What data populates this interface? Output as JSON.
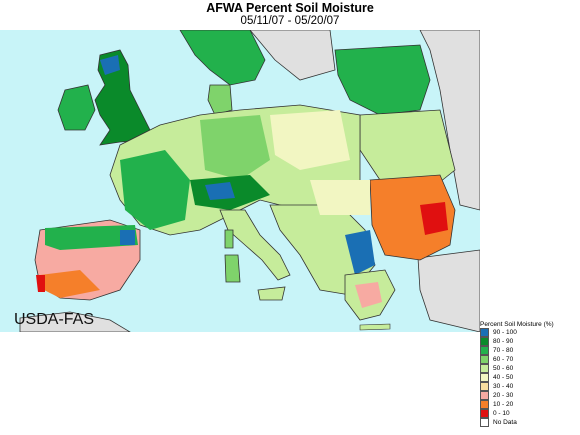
{
  "header": {
    "title": "AFWA Percent Soil Moisture",
    "date_range": "05/11/07 - 05/20/07"
  },
  "map": {
    "ocean_color": "#c8f4f8",
    "land_color": "#e0e0e0",
    "agency_label": "USDA-FAS"
  },
  "legend": {
    "title": "Percent Soil Moisture (%)",
    "items": [
      {
        "label": "90 - 100",
        "color": "#1a6fb4"
      },
      {
        "label": "80 - 90",
        "color": "#0a8a2a"
      },
      {
        "label": "70 - 80",
        "color": "#22b14c"
      },
      {
        "label": "60 - 70",
        "color": "#7fd36b"
      },
      {
        "label": "50 - 60",
        "color": "#c6ec9b"
      },
      {
        "label": "40 - 50",
        "color": "#f2f6c2"
      },
      {
        "label": "30 - 40",
        "color": "#f9dfa0"
      },
      {
        "label": "20 - 30",
        "color": "#f7aaa2"
      },
      {
        "label": "10 - 20",
        "color": "#f57f2a"
      },
      {
        "label": "0 - 10",
        "color": "#e01010"
      },
      {
        "label": "No Data",
        "color": "#ffffff"
      }
    ]
  }
}
